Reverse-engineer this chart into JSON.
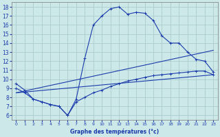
{
  "title": "Graphe des températures (°c)",
  "background_color": "#cce8e8",
  "grid_color": "#aacccc",
  "line_color": "#1a3aab",
  "xlim": [
    -0.5,
    23.5
  ],
  "ylim": [
    5.5,
    18.5
  ],
  "xticks": [
    0,
    1,
    2,
    3,
    4,
    5,
    6,
    7,
    8,
    9,
    10,
    11,
    12,
    13,
    14,
    15,
    16,
    17,
    18,
    19,
    20,
    21,
    22,
    23
  ],
  "yticks": [
    6,
    7,
    8,
    9,
    10,
    11,
    12,
    13,
    14,
    15,
    16,
    17,
    18
  ],
  "curve1_x": [
    0,
    1,
    2,
    3,
    4,
    5,
    6,
    7,
    8,
    9,
    10,
    11,
    12,
    13,
    14,
    15,
    16,
    17,
    18,
    19,
    20,
    21,
    22,
    23
  ],
  "curve1_y": [
    9.5,
    8.8,
    7.8,
    7.5,
    7.2,
    7.0,
    6.0,
    7.8,
    12.3,
    16.0,
    17.0,
    17.8,
    18.0,
    17.2,
    17.4,
    17.3,
    16.5,
    14.8,
    14.0,
    14.0,
    13.0,
    12.2,
    12.0,
    10.8
  ],
  "curve2_x": [
    0,
    1,
    2,
    3,
    4,
    5,
    6,
    7,
    8,
    9,
    10,
    11,
    12,
    13,
    14,
    15,
    16,
    17,
    18,
    19,
    20,
    21,
    22,
    23
  ],
  "curve2_y": [
    9.0,
    8.5,
    7.8,
    7.5,
    7.2,
    7.0,
    6.0,
    7.5,
    8.0,
    8.5,
    8.8,
    9.2,
    9.5,
    9.8,
    10.0,
    10.2,
    10.4,
    10.5,
    10.6,
    10.7,
    10.8,
    10.9,
    10.9,
    10.5
  ],
  "line3_x": [
    0,
    23
  ],
  "line3_y": [
    8.5,
    13.2
  ],
  "line4_x": [
    0,
    23
  ],
  "line4_y": [
    8.5,
    10.5
  ],
  "xlabel_fontsize": 5.5,
  "tick_fontsize_x": 4.5,
  "tick_fontsize_y": 5.5
}
